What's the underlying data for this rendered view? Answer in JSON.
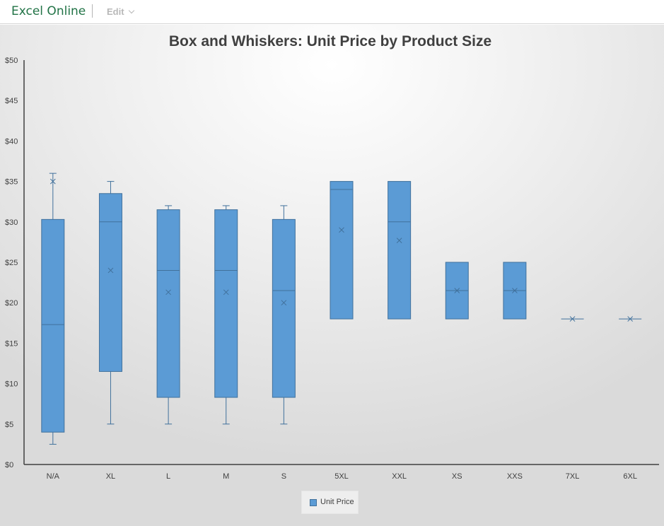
{
  "app": {
    "brand": "Excel Online",
    "edit_label": "Edit"
  },
  "colors": {
    "box_fill": "#5b9bd5",
    "box_stroke": "#41719c",
    "axis": "#404040",
    "brand": "#217346"
  },
  "chart_data": {
    "type": "box",
    "title": "Box and Whiskers: Unit Price by Product Size",
    "xlabel": "",
    "ylabel": "",
    "ylim": [
      0,
      50
    ],
    "y_ticks": [
      "$0",
      "$5",
      "$10",
      "$15",
      "$20",
      "$25",
      "$30",
      "$35",
      "$40",
      "$45",
      "$50"
    ],
    "y_tick_values": [
      0,
      5,
      10,
      15,
      20,
      25,
      30,
      35,
      40,
      45,
      50
    ],
    "grid": false,
    "legend_position": "bottom",
    "legend_entries": [
      "Unit Price"
    ],
    "categories": [
      "N/A",
      "XL",
      "L",
      "M",
      "S",
      "5XL",
      "XXL",
      "XS",
      "XXS",
      "7XL",
      "6XL"
    ],
    "series": [
      {
        "name": "Unit Price",
        "boxes": [
          {
            "min": 2.5,
            "q1": 4,
            "median": 17.3,
            "q3": 30.3,
            "max": 36,
            "mean": 35
          },
          {
            "min": 5,
            "q1": 11.5,
            "median": 30,
            "q3": 33.5,
            "max": 35,
            "mean": 24
          },
          {
            "min": 5,
            "q1": 8.3,
            "median": 24,
            "q3": 31.5,
            "max": 32,
            "mean": 21.3
          },
          {
            "min": 5,
            "q1": 8.3,
            "median": 24,
            "q3": 31.5,
            "max": 32,
            "mean": 21.3
          },
          {
            "min": 5,
            "q1": 8.3,
            "median": 21.5,
            "q3": 30.3,
            "max": 32,
            "mean": 20
          },
          {
            "min": 18,
            "q1": 18,
            "median": 34,
            "q3": 35,
            "max": 35,
            "mean": 29
          },
          {
            "min": 18,
            "q1": 18,
            "median": 30,
            "q3": 35,
            "max": 35,
            "mean": 27.7
          },
          {
            "min": 18,
            "q1": 18,
            "median": 21.5,
            "q3": 25,
            "max": 25,
            "mean": 21.5
          },
          {
            "min": 18,
            "q1": 18,
            "median": 21.5,
            "q3": 25,
            "max": 25,
            "mean": 21.5
          },
          {
            "min": 18,
            "q1": 18,
            "median": 18,
            "q3": 18,
            "max": 18,
            "mean": 18
          },
          {
            "min": 18,
            "q1": 18,
            "median": 18,
            "q3": 18,
            "max": 18,
            "mean": 18
          }
        ]
      }
    ]
  }
}
